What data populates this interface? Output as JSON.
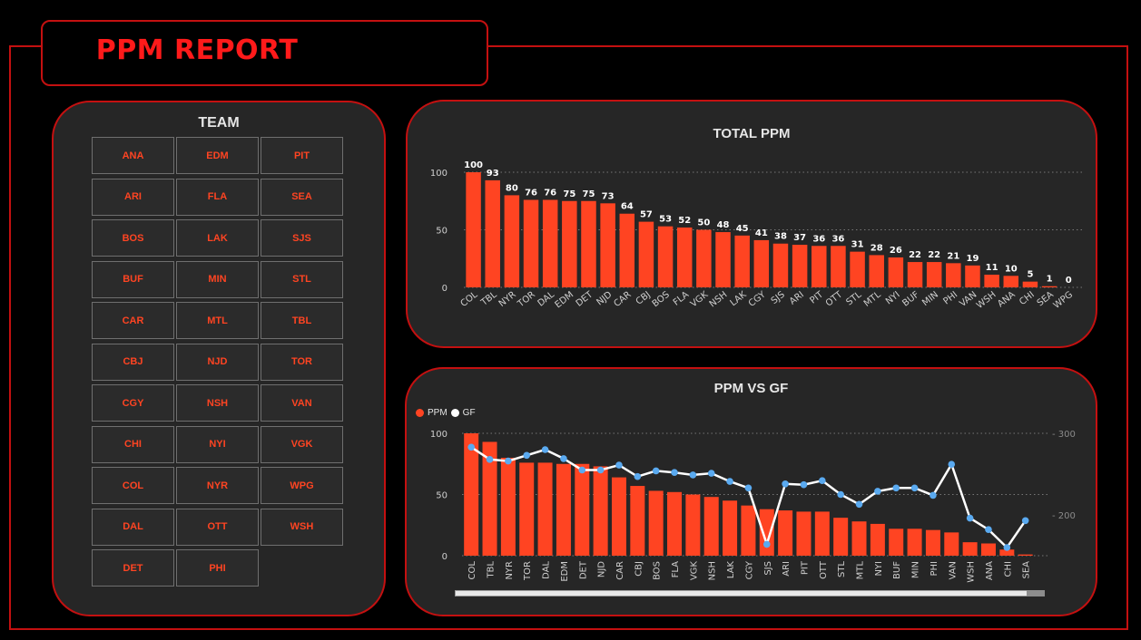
{
  "report": {
    "title": "PPM REPORT"
  },
  "team_slicer": {
    "title": "TEAM",
    "items": [
      "ANA",
      "EDM",
      "PIT",
      "ARI",
      "FLA",
      "SEA",
      "BOS",
      "LAK",
      "SJS",
      "BUF",
      "MIN",
      "STL",
      "CAR",
      "MTL",
      "TBL",
      "CBJ",
      "NJD",
      "TOR",
      "CGY",
      "NSH",
      "VAN",
      "CHI",
      "NYI",
      "VGK",
      "COL",
      "NYR",
      "WPG",
      "DAL",
      "OTT",
      "WSH",
      "DET",
      "PHI"
    ]
  },
  "colors": {
    "bar": "#ff4422",
    "line": "#ffffff",
    "marker": "#5aaaf0",
    "accent": "#c41010"
  },
  "chart_data": [
    {
      "type": "bar",
      "title": "TOTAL PPM",
      "categories": [
        "COL",
        "TBL",
        "NYR",
        "TOR",
        "DAL",
        "EDM",
        "DET",
        "NJD",
        "CAR",
        "CBJ",
        "BOS",
        "FLA",
        "VGK",
        "NSH",
        "LAK",
        "CGY",
        "SJS",
        "ARI",
        "PIT",
        "OTT",
        "STL",
        "MTL",
        "NYI",
        "BUF",
        "MIN",
        "PHI",
        "VAN",
        "WSH",
        "ANA",
        "CHI",
        "SEA",
        "WPG"
      ],
      "values": [
        100,
        93,
        80,
        76,
        76,
        75,
        75,
        73,
        64,
        57,
        53,
        52,
        50,
        48,
        45,
        41,
        38,
        37,
        36,
        36,
        31,
        28,
        26,
        22,
        22,
        21,
        19,
        11,
        10,
        5,
        1,
        0
      ],
      "yticks": [
        0,
        50,
        100
      ],
      "ylim": [
        0,
        100
      ],
      "grid": true
    },
    {
      "type": "bar+line",
      "title": "PPM VS GF",
      "legend": [
        "PPM",
        "GF"
      ],
      "legend_position": "top-left",
      "categories": [
        "COL",
        "TBL",
        "NYR",
        "TOR",
        "DAL",
        "EDM",
        "DET",
        "NJD",
        "CAR",
        "CBJ",
        "BOS",
        "FLA",
        "VGK",
        "NSH",
        "LAK",
        "CGY",
        "SJS",
        "ARI",
        "PIT",
        "OTT",
        "STL",
        "MTL",
        "NYI",
        "BUF",
        "MIN",
        "PHI",
        "VAN",
        "WSH",
        "ANA",
        "CHI",
        "SEA"
      ],
      "series": [
        {
          "name": "PPM",
          "type": "bar",
          "axis": "left",
          "values": [
            100,
            93,
            80,
            76,
            76,
            75,
            75,
            73,
            64,
            57,
            53,
            52,
            50,
            48,
            45,
            41,
            38,
            37,
            36,
            36,
            31,
            28,
            26,
            22,
            22,
            21,
            19,
            11,
            10,
            5,
            1
          ]
        },
        {
          "name": "GF",
          "type": "line",
          "axis": "right",
          "values": [
            283,
            268,
            266,
            273,
            280,
            269,
            255,
            255,
            261,
            247,
            254,
            252,
            249,
            251,
            241,
            233,
            164,
            238,
            237,
            242,
            225,
            213,
            229,
            233,
            233,
            224,
            262,
            196,
            182,
            160,
            193
          ]
        }
      ],
      "yticks_left": [
        0,
        50,
        100
      ],
      "ylim_left": [
        0,
        100
      ],
      "yticks_right": [
        200,
        300
      ],
      "ylim_right": [
        150,
        300
      ],
      "grid": true
    }
  ]
}
